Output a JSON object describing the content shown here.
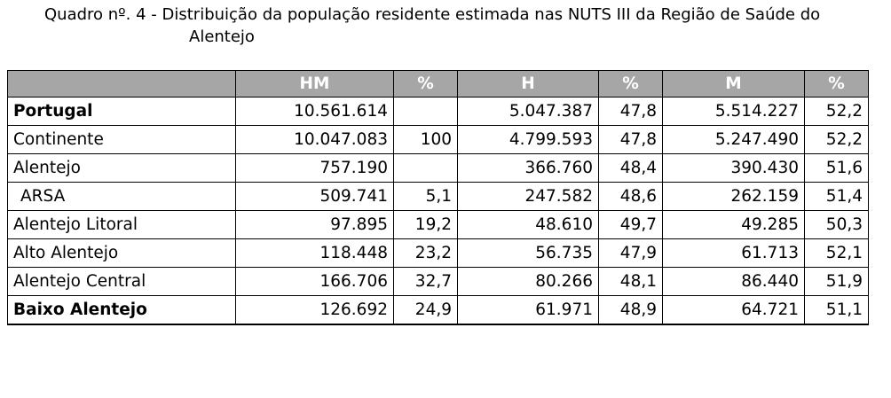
{
  "title": "Quadro nº. 4 - Distribuição da população residente estimada nas NUTS III da Região de Saúde do Alentejo",
  "table": {
    "header": [
      null,
      "HM",
      "%",
      "H",
      "%",
      "M",
      "%"
    ],
    "rows": [
      [
        "Portugal",
        "10.561.614",
        null,
        "5.047.387",
        "47,8",
        "5.514.227",
        "52,2"
      ],
      [
        "Continente",
        "10.047.083",
        "100",
        "4.799.593",
        "47,8",
        "5.247.490",
        "52,2"
      ],
      [
        "Alentejo",
        "757.190",
        null,
        "366.760",
        "48,4",
        "390.430",
        "51,6"
      ],
      [
        "ARSA",
        "509.741",
        "5,1",
        "247.582",
        "48,6",
        "262.159",
        "51,4"
      ],
      [
        "Alentejo Litoral",
        "97.895",
        "19,2",
        "48.610",
        "49,7",
        "49.285",
        "50,3"
      ],
      [
        "Alto Alentejo",
        "118.448",
        "23,2",
        "56.735",
        "47,9",
        "61.713",
        "52,1"
      ],
      [
        "Alentejo Central",
        "166.706",
        "32,7",
        "80.266",
        "48,1",
        "86.440",
        "51,9"
      ],
      [
        "Baixo Alentejo",
        "126.692",
        "24,9",
        "61.971",
        "48,9",
        "64.721",
        "51,1"
      ]
    ]
  }
}
